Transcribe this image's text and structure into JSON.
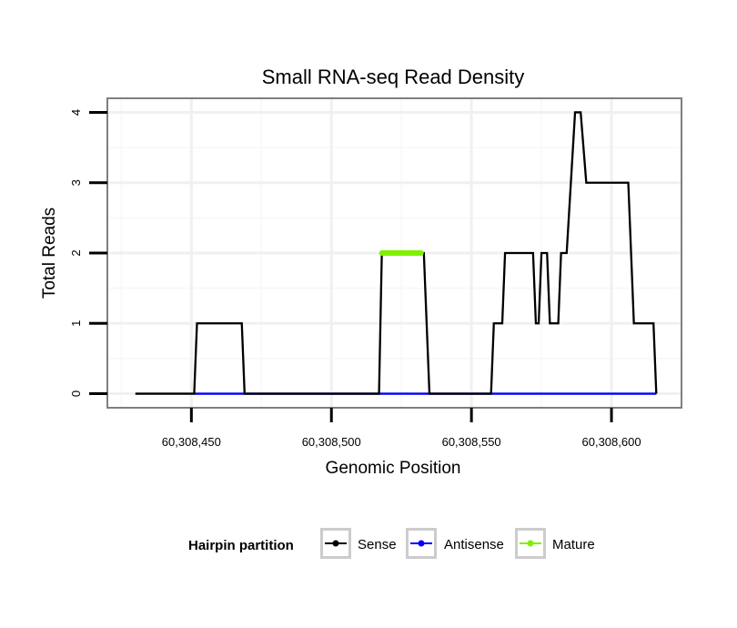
{
  "chart_data": {
    "type": "line",
    "title": "Small RNA-seq Read Density",
    "xlabel": "Genomic Position",
    "ylabel": "Total Reads",
    "xlim": [
      60308420,
      60308625
    ],
    "ylim": [
      -0.2,
      4.2
    ],
    "x_ticks": [
      60308450,
      60308500,
      60308550,
      60308600
    ],
    "x_tick_labels": [
      "60,308,450",
      "60,308,500",
      "60,308,550",
      "60,308,600"
    ],
    "y_ticks": [
      0,
      1,
      2,
      3,
      4
    ],
    "y_tick_labels": [
      "0",
      "1",
      "2",
      "3",
      "4"
    ],
    "grid": true,
    "legend": {
      "title": "Hairpin partition",
      "position": "bottom",
      "entries": [
        "Sense",
        "Antisense",
        "Mature"
      ]
    },
    "series": [
      {
        "name": "Sense",
        "color": "#000000",
        "points": [
          [
            60308430,
            0
          ],
          [
            60308451,
            0
          ],
          [
            60308452,
            1
          ],
          [
            60308468,
            1
          ],
          [
            60308469,
            0
          ],
          [
            60308517,
            0
          ],
          [
            60308518,
            2
          ],
          [
            60308533,
            2
          ],
          [
            60308534,
            1
          ],
          [
            60308535,
            0
          ],
          [
            60308557,
            0
          ],
          [
            60308558,
            1
          ],
          [
            60308561,
            1
          ],
          [
            60308562,
            2
          ],
          [
            60308572,
            2
          ],
          [
            60308573,
            1
          ],
          [
            60308574,
            1
          ],
          [
            60308575,
            2
          ],
          [
            60308577,
            2
          ],
          [
            60308578,
            1
          ],
          [
            60308581,
            1
          ],
          [
            60308582,
            2
          ],
          [
            60308584,
            2
          ],
          [
            60308587,
            4
          ],
          [
            60308589,
            4
          ],
          [
            60308591,
            3
          ],
          [
            60308606,
            3
          ],
          [
            60308608,
            1
          ],
          [
            60308615,
            1
          ],
          [
            60308616,
            0
          ]
        ]
      },
      {
        "name": "Antisense",
        "color": "#0000ff",
        "points": [
          [
            60308451,
            0
          ],
          [
            60308616,
            0
          ]
        ]
      },
      {
        "name": "Mature",
        "color": "#80f000",
        "points": [
          [
            60308518,
            2
          ],
          [
            60308532,
            2
          ]
        ]
      }
    ]
  }
}
